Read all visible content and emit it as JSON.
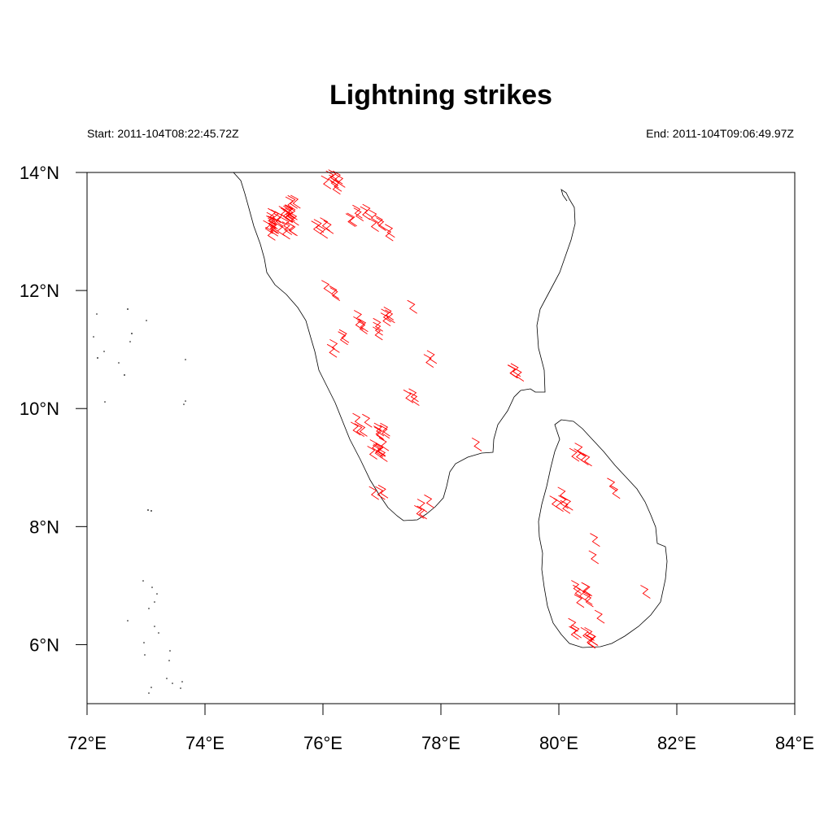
{
  "title": "Lightning strikes",
  "start_label": "Start: 2011-104T08:22:45.72Z",
  "end_label": "End:  2011-104T09:06:49.97Z",
  "colors": {
    "strike": "#ff0000",
    "coast": "#000000",
    "frame": "#000000"
  },
  "chart_data": {
    "type": "scatter",
    "marker": "lightning-bolt",
    "xlim": [
      72,
      84
    ],
    "ylim": [
      5,
      14
    ],
    "x_ticks": [
      {
        "value": 72,
        "label": "72°E"
      },
      {
        "value": 74,
        "label": "74°E"
      },
      {
        "value": 76,
        "label": "76°E"
      },
      {
        "value": 78,
        "label": "78°E"
      },
      {
        "value": 80,
        "label": "80°E"
      },
      {
        "value": 82,
        "label": "82°E"
      },
      {
        "value": 84,
        "label": "84°E"
      }
    ],
    "y_ticks": [
      {
        "value": 6,
        "label": "6°N"
      },
      {
        "value": 8,
        "label": "8°N"
      },
      {
        "value": 10,
        "label": "10°N"
      },
      {
        "value": 12,
        "label": "12°N"
      },
      {
        "value": 14,
        "label": "14°N"
      }
    ],
    "clusters": [
      {
        "lon": 75.3,
        "lat": 13.2,
        "count": 22
      },
      {
        "lon": 75.1,
        "lat": 13.05,
        "count": 6
      },
      {
        "lon": 75.5,
        "lat": 13.4,
        "count": 4
      },
      {
        "lon": 76.2,
        "lat": 13.85,
        "count": 8
      },
      {
        "lon": 76.0,
        "lat": 13.1,
        "count": 5
      },
      {
        "lon": 76.65,
        "lat": 13.35,
        "count": 4
      },
      {
        "lon": 76.95,
        "lat": 13.2,
        "count": 4
      },
      {
        "lon": 76.5,
        "lat": 13.25,
        "count": 2
      },
      {
        "lon": 77.15,
        "lat": 13.0,
        "count": 2
      },
      {
        "lon": 76.15,
        "lat": 12.03,
        "count": 3
      },
      {
        "lon": 76.65,
        "lat": 11.45,
        "count": 4
      },
      {
        "lon": 76.9,
        "lat": 11.35,
        "count": 3
      },
      {
        "lon": 77.1,
        "lat": 11.55,
        "count": 4
      },
      {
        "lon": 76.4,
        "lat": 11.2,
        "count": 2
      },
      {
        "lon": 77.45,
        "lat": 11.75,
        "count": 1
      },
      {
        "lon": 76.15,
        "lat": 11.03,
        "count": 2
      },
      {
        "lon": 77.85,
        "lat": 10.87,
        "count": 2
      },
      {
        "lon": 79.3,
        "lat": 10.55,
        "count": 4
      },
      {
        "lon": 77.5,
        "lat": 10.2,
        "count": 3
      },
      {
        "lon": 76.65,
        "lat": 9.75,
        "count": 5
      },
      {
        "lon": 77.0,
        "lat": 9.65,
        "count": 5
      },
      {
        "lon": 76.95,
        "lat": 9.25,
        "count": 8
      },
      {
        "lon": 78.55,
        "lat": 9.45,
        "count": 1
      },
      {
        "lon": 76.95,
        "lat": 8.55,
        "count": 3
      },
      {
        "lon": 77.7,
        "lat": 8.33,
        "count": 4
      },
      {
        "lon": 80.3,
        "lat": 9.3,
        "count": 3
      },
      {
        "lon": 80.45,
        "lat": 9.2,
        "count": 2
      },
      {
        "lon": 80.05,
        "lat": 8.45,
        "count": 6
      },
      {
        "lon": 80.95,
        "lat": 8.65,
        "count": 2
      },
      {
        "lon": 80.65,
        "lat": 7.83,
        "count": 1
      },
      {
        "lon": 80.55,
        "lat": 7.45,
        "count": 1
      },
      {
        "lon": 80.4,
        "lat": 6.85,
        "count": 8
      },
      {
        "lon": 80.75,
        "lat": 6.45,
        "count": 1
      },
      {
        "lon": 81.45,
        "lat": 6.95,
        "count": 1
      },
      {
        "lon": 80.3,
        "lat": 6.25,
        "count": 3
      },
      {
        "lon": 80.5,
        "lat": 6.08,
        "count": 6
      }
    ]
  }
}
